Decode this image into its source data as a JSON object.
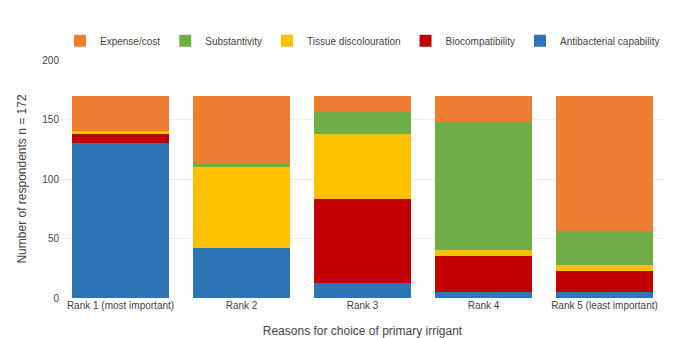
{
  "chart_data": {
    "type": "bar",
    "stacked": true,
    "categories": [
      "Rank 1 (most important)",
      "Rank 2",
      "Rank 3",
      "Rank 4",
      "Rank 5 (least important)"
    ],
    "series": [
      {
        "name": "Antibacterial capability",
        "color": "#2e75b6",
        "values": [
          130,
          42,
          13,
          5,
          5
        ]
      },
      {
        "name": "Biocompatibility",
        "color": "#c00000",
        "values": [
          8,
          0,
          70,
          30,
          18
        ]
      },
      {
        "name": "Tissue discolouration",
        "color": "#ffc000",
        "values": [
          2,
          68,
          55,
          5,
          5
        ]
      },
      {
        "name": "Substantivity",
        "color": "#70ad47",
        "values": [
          0,
          3,
          18,
          108,
          28
        ]
      },
      {
        "name": "Expense/cost",
        "color": "#ed7d31",
        "values": [
          30,
          57,
          14,
          22,
          114
        ]
      }
    ],
    "xlabel": "Reasons for choice of primary irrigant",
    "ylabel": "Number of respondents n = 172",
    "ylim": [
      0,
      200
    ],
    "yticks": [
      0,
      50,
      100,
      150,
      200
    ],
    "grid": true,
    "legend": "top"
  }
}
